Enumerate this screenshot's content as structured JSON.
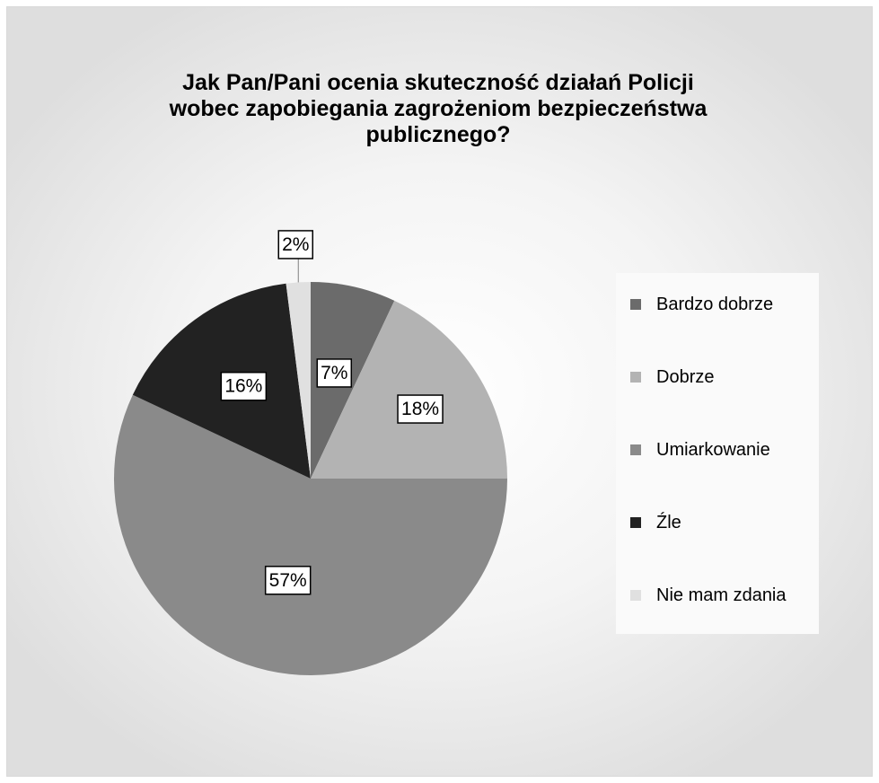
{
  "chart_data": {
    "type": "pie",
    "title": "Jak Pan/Pani ocenia skuteczność działań Policji\nwobec zapobiegania zagrożeniom bezpieczeństwa\npublicznego?",
    "categories": [
      "Bardzo dobrze",
      "Dobrze",
      "Umiarkowanie",
      "Źle",
      "Nie mam zdania"
    ],
    "values": [
      7,
      18,
      57,
      16,
      2
    ],
    "labels": [
      "7%",
      "18%",
      "57%",
      "16%",
      "2%"
    ],
    "colors": [
      "#6b6b6b",
      "#b3b3b3",
      "#8a8a8a",
      "#222222",
      "#e0e0e0"
    ],
    "legend": "right"
  }
}
